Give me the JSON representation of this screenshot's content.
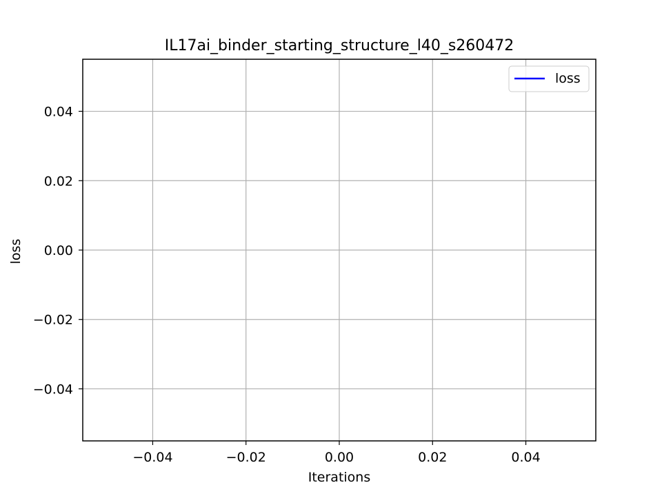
{
  "chart_data": {
    "type": "line",
    "title": "IL17ai_binder_starting_structure_l40_s260472",
    "xlabel": "Iterations",
    "ylabel": "loss",
    "xlim": [
      -0.055,
      0.055
    ],
    "ylim": [
      -0.055,
      0.055
    ],
    "xticks": [
      -0.04,
      -0.02,
      0.0,
      0.02,
      0.04
    ],
    "yticks": [
      -0.04,
      -0.02,
      0.0,
      0.02,
      0.04
    ],
    "xtick_labels": [
      "−0.04",
      "−0.02",
      "0.00",
      "0.02",
      "0.04"
    ],
    "ytick_labels": [
      "−0.04",
      "−0.02",
      "0.00",
      "0.02",
      "0.04"
    ],
    "grid": true,
    "legend_position": "top-right",
    "series": [
      {
        "name": "loss",
        "color": "#0000ff",
        "x": [],
        "y": []
      }
    ]
  }
}
